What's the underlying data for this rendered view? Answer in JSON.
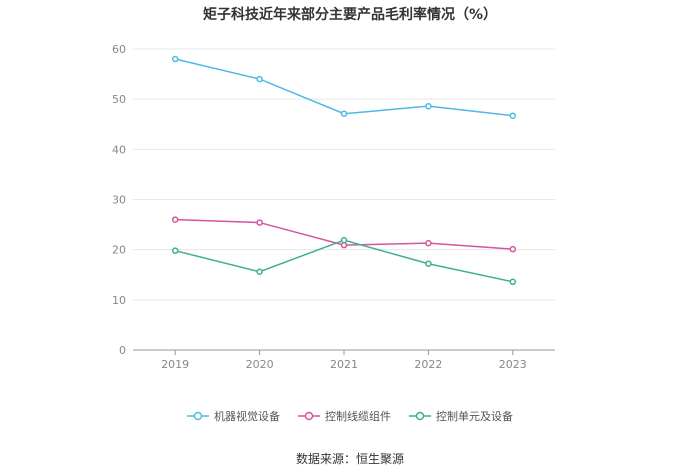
{
  "chart_data": {
    "type": "line",
    "title": "矩子科技近年来部分主要产品毛利率情况（%）",
    "categories": [
      "2019",
      "2020",
      "2021",
      "2022",
      "2023"
    ],
    "ylim": [
      0,
      60
    ],
    "yticks": [
      0,
      10,
      20,
      30,
      40,
      50,
      60
    ],
    "grid": true,
    "legend_position": "bottom",
    "series": [
      {
        "name": "机器视觉设备",
        "color": "#4fb9e6",
        "values": [
          58.0,
          54.0,
          47.1,
          48.6,
          46.7
        ]
      },
      {
        "name": "控制线缆组件",
        "color": "#d4559e",
        "values": [
          26.0,
          25.4,
          20.9,
          21.3,
          20.1
        ]
      },
      {
        "name": "控制单元及设备",
        "color": "#3fae92",
        "values": [
          19.8,
          15.6,
          21.9,
          17.2,
          13.6
        ]
      }
    ]
  },
  "source": "数据来源：恒生聚源"
}
